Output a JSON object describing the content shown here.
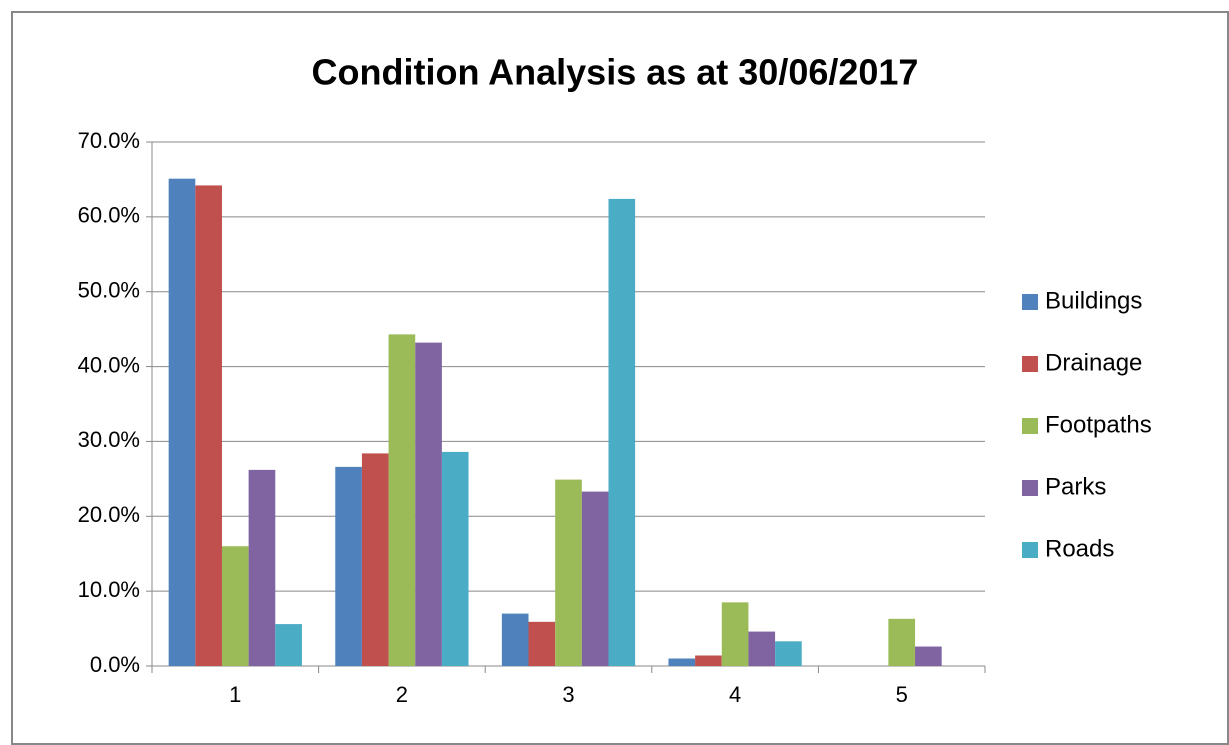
{
  "chart_data": {
    "type": "bar",
    "title": "Condition Analysis as at 30/06/2017",
    "categories": [
      "1",
      "2",
      "3",
      "4",
      "5"
    ],
    "series": [
      {
        "name": "Buildings",
        "color": "#4f81bd",
        "values": [
          65.1,
          26.6,
          7.0,
          1.0,
          0
        ]
      },
      {
        "name": "Drainage",
        "color": "#c0504d",
        "values": [
          64.2,
          28.4,
          5.9,
          1.4,
          0
        ]
      },
      {
        "name": "Footpaths",
        "color": "#9bbb59",
        "values": [
          16.0,
          44.3,
          24.9,
          8.5,
          6.3
        ]
      },
      {
        "name": "Parks",
        "color": "#8064a2",
        "values": [
          26.2,
          43.2,
          23.3,
          4.6,
          2.6
        ]
      },
      {
        "name": "Roads",
        "color": "#4bacc6",
        "values": [
          5.6,
          28.6,
          62.4,
          3.3,
          0
        ]
      }
    ],
    "ylim": [
      0,
      70
    ],
    "yticks": [
      {
        "value": 0,
        "label": "0.0%"
      },
      {
        "value": 10,
        "label": "10.0%"
      },
      {
        "value": 20,
        "label": "20.0%"
      },
      {
        "value": 30,
        "label": "30.0%"
      },
      {
        "value": 40,
        "label": "40.0%"
      },
      {
        "value": 50,
        "label": "50.0%"
      },
      {
        "value": 60,
        "label": "60.0%"
      },
      {
        "value": 70,
        "label": "70.0%"
      }
    ],
    "grid": true,
    "legend": "right"
  }
}
